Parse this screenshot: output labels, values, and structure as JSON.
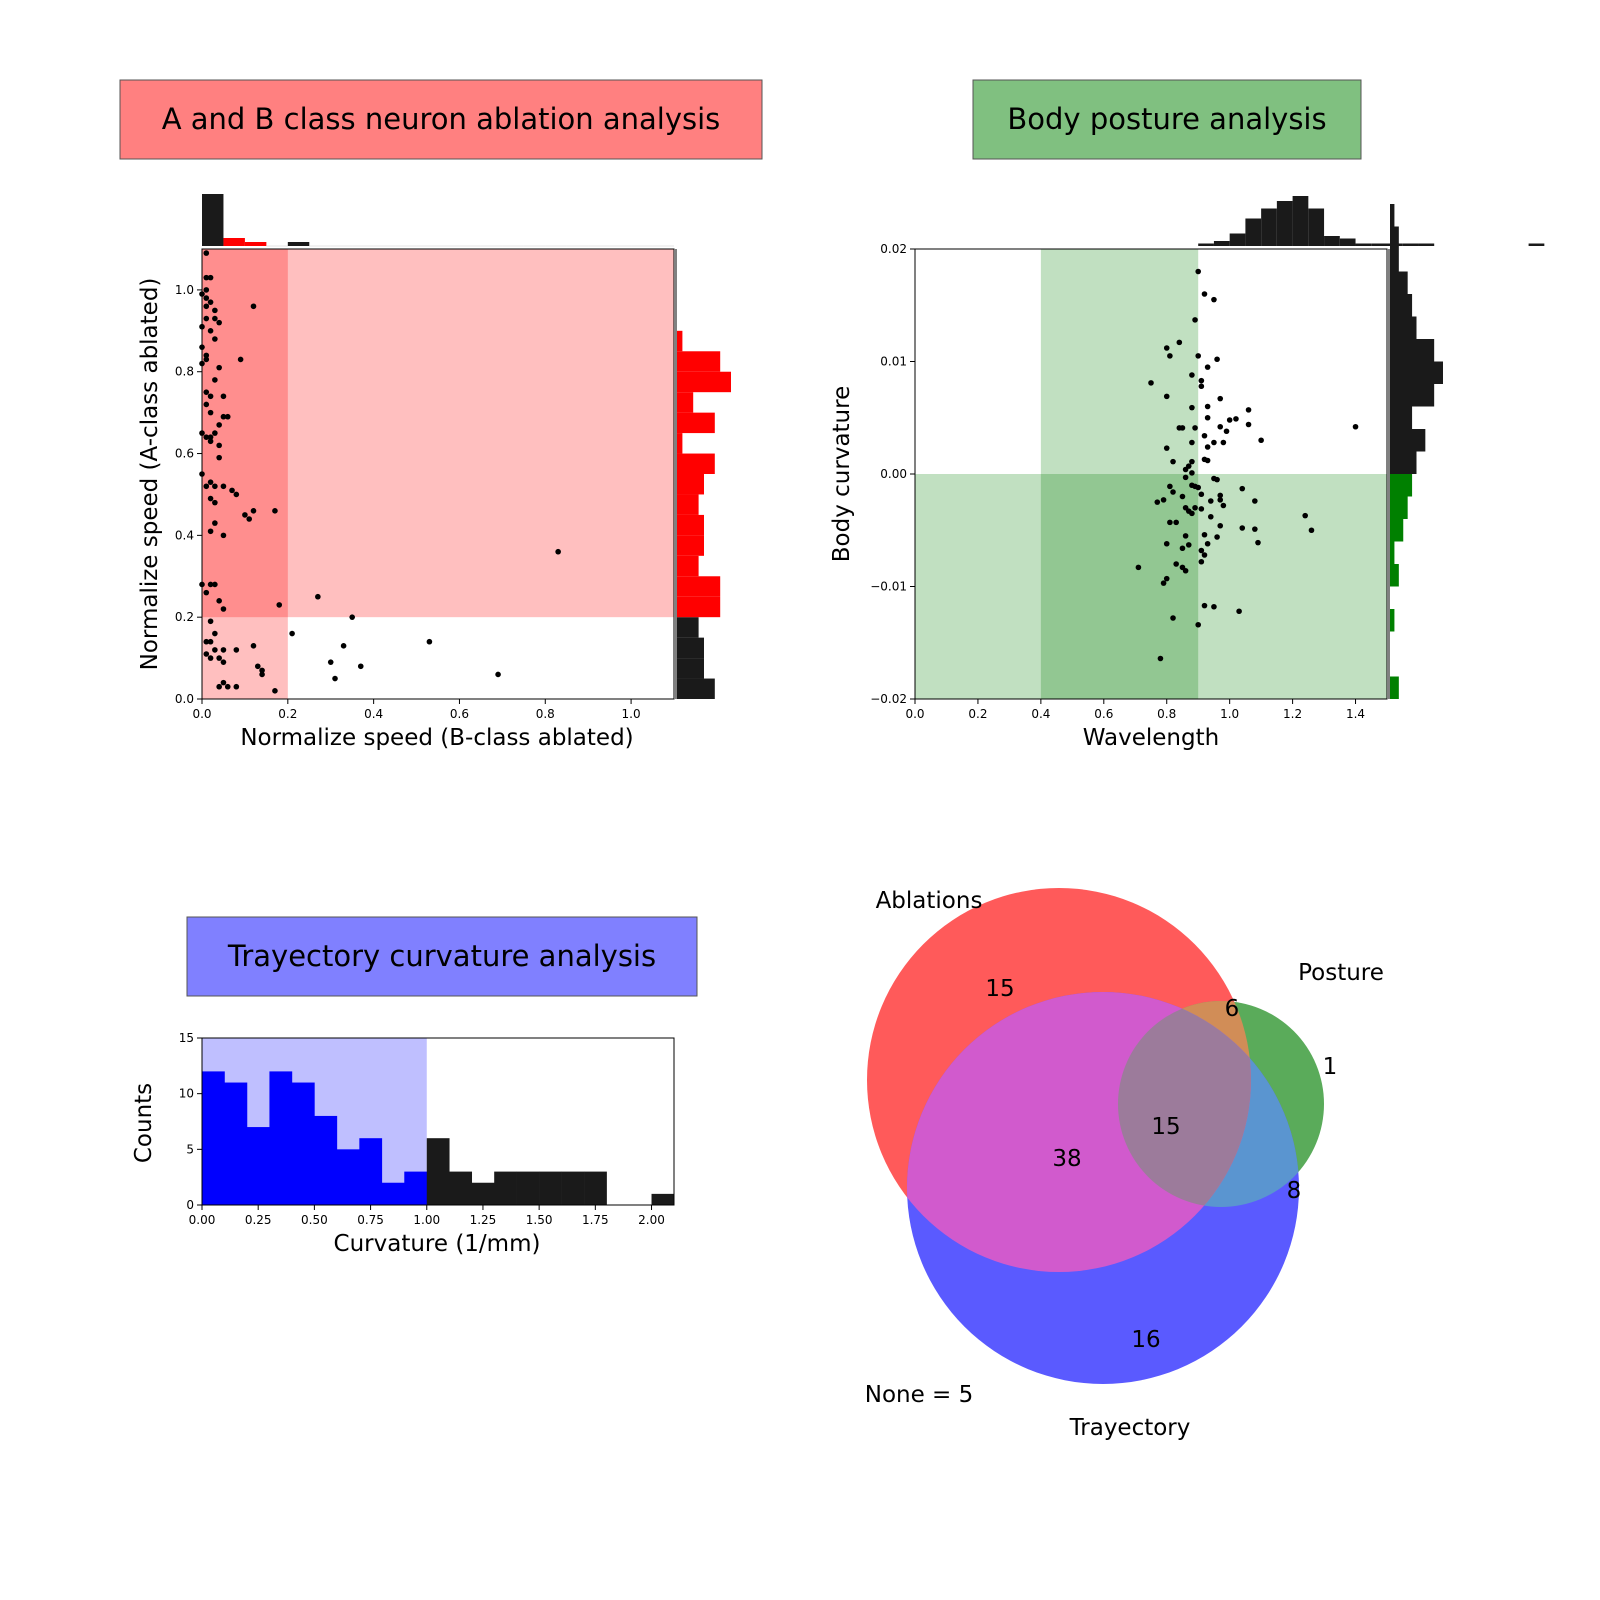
{
  "colors": {
    "red": "#ff0000",
    "red_title_bg": "#ff8080",
    "red_shade_light": "#ffbfbf",
    "red_shade_dark": "#ff8e8e",
    "green": "#008000",
    "green_title_bg": "#80c080",
    "green_shade_light": "#c1e0c1",
    "green_shade_dark": "#92c792",
    "blue": "#0000ff",
    "blue_title_bg": "#8080ff",
    "blue_shade": "#bfbfff",
    "black": "#1a1a1a",
    "venn_red": "#ff5a5a",
    "venn_green": "#5aab5a",
    "venn_blue": "#5a5aff",
    "venn_red_green": "#d18d57",
    "venn_red_blue": "#d15acd",
    "venn_green_blue": "#5a95d0",
    "venn_all": "#9c7b9b"
  },
  "chart_data": [
    {
      "id": "ablation",
      "type": "scatter",
      "title": "A and B class neuron ablation analysis",
      "xlabel": "Normalize speed (B-class ablated)",
      "ylabel": "Normalize speed (A-class ablated)",
      "xlim": [
        0.0,
        1.1
      ],
      "ylim": [
        0.0,
        1.1
      ],
      "xticks": [
        "0.0",
        "0.2",
        "0.4",
        "0.6",
        "0.8",
        "1.0"
      ],
      "yticks": [
        "0.0",
        "0.2",
        "0.4",
        "0.6",
        "0.8",
        "1.0"
      ],
      "thresholds": {
        "x": 0.2,
        "y": 0.2
      },
      "grid": false,
      "points": [
        [
          0.01,
          1.09
        ],
        [
          0.01,
          1.03
        ],
        [
          0.02,
          1.03
        ],
        [
          0.01,
          1.0
        ],
        [
          0.0,
          0.99
        ],
        [
          0.01,
          0.98
        ],
        [
          0.02,
          0.97
        ],
        [
          0.01,
          0.96
        ],
        [
          0.12,
          0.96
        ],
        [
          0.03,
          0.95
        ],
        [
          0.01,
          0.93
        ],
        [
          0.03,
          0.93
        ],
        [
          0.0,
          0.91
        ],
        [
          0.02,
          0.9
        ],
        [
          0.04,
          0.92
        ],
        [
          0.03,
          0.88
        ],
        [
          0.0,
          0.86
        ],
        [
          0.01,
          0.84
        ],
        [
          0.01,
          0.83
        ],
        [
          0.0,
          0.82
        ],
        [
          0.09,
          0.83
        ],
        [
          0.04,
          0.81
        ],
        [
          0.03,
          0.78
        ],
        [
          0.01,
          0.75
        ],
        [
          0.02,
          0.74
        ],
        [
          0.05,
          0.74
        ],
        [
          0.01,
          0.72
        ],
        [
          0.02,
          0.7
        ],
        [
          0.05,
          0.69
        ],
        [
          0.06,
          0.69
        ],
        [
          0.04,
          0.67
        ],
        [
          0.0,
          0.65
        ],
        [
          0.01,
          0.64
        ],
        [
          0.02,
          0.64
        ],
        [
          0.03,
          0.65
        ],
        [
          0.02,
          0.63
        ],
        [
          0.04,
          0.62
        ],
        [
          0.04,
          0.59
        ],
        [
          0.0,
          0.55
        ],
        [
          0.02,
          0.53
        ],
        [
          0.01,
          0.52
        ],
        [
          0.03,
          0.52
        ],
        [
          0.05,
          0.52
        ],
        [
          0.07,
          0.51
        ],
        [
          0.08,
          0.5
        ],
        [
          0.02,
          0.49
        ],
        [
          0.03,
          0.48
        ],
        [
          0.12,
          0.46
        ],
        [
          0.17,
          0.46
        ],
        [
          0.1,
          0.45
        ],
        [
          0.11,
          0.44
        ],
        [
          0.03,
          0.43
        ],
        [
          0.02,
          0.41
        ],
        [
          0.05,
          0.4
        ],
        [
          0.83,
          0.36
        ],
        [
          0.0,
          0.28
        ],
        [
          0.02,
          0.28
        ],
        [
          0.03,
          0.28
        ],
        [
          0.01,
          0.26
        ],
        [
          0.04,
          0.24
        ],
        [
          0.05,
          0.22
        ],
        [
          0.27,
          0.25
        ],
        [
          0.18,
          0.23
        ],
        [
          0.35,
          0.2
        ],
        [
          0.02,
          0.19
        ],
        [
          0.21,
          0.16
        ],
        [
          0.03,
          0.16
        ],
        [
          0.01,
          0.14
        ],
        [
          0.02,
          0.14
        ],
        [
          0.53,
          0.14
        ],
        [
          0.12,
          0.13
        ],
        [
          0.33,
          0.13
        ],
        [
          0.03,
          0.12
        ],
        [
          0.05,
          0.12
        ],
        [
          0.08,
          0.12
        ],
        [
          0.01,
          0.11
        ],
        [
          0.02,
          0.1
        ],
        [
          0.04,
          0.1
        ],
        [
          0.05,
          0.09
        ],
        [
          0.3,
          0.09
        ],
        [
          0.37,
          0.08
        ],
        [
          0.13,
          0.08
        ],
        [
          0.14,
          0.07
        ],
        [
          0.14,
          0.06
        ],
        [
          0.31,
          0.05
        ],
        [
          0.69,
          0.06
        ],
        [
          0.05,
          0.04
        ],
        [
          0.04,
          0.03
        ],
        [
          0.06,
          0.03
        ],
        [
          0.08,
          0.03
        ],
        [
          0.17,
          0.02
        ]
      ],
      "top_histogram": {
        "bin_width": 0.05,
        "counts": [
          13,
          2,
          1,
          0,
          1,
          0,
          0,
          0,
          0,
          0,
          0,
          0,
          0,
          0,
          0,
          0,
          0,
          0,
          0,
          0,
          0,
          0
        ],
        "colored_bins_below": 0.2
      },
      "right_histogram": {
        "bin_width": 0.05,
        "counts": [
          7,
          5,
          5,
          4,
          8,
          8,
          4,
          5,
          5,
          4,
          5,
          7,
          1,
          7,
          3,
          10,
          8,
          1
        ],
        "colored_bins_above": 0.2
      }
    },
    {
      "id": "posture",
      "type": "scatter",
      "title": "Body posture analysis",
      "xlabel": "Wavelength",
      "ylabel": "Body curvature",
      "xlim": [
        0.0,
        1.5
      ],
      "ylim": [
        -0.02,
        0.02
      ],
      "xticks": [
        "0.0",
        "0.2",
        "0.4",
        "0.6",
        "0.8",
        "1.0",
        "1.2",
        "1.4"
      ],
      "yticks": [
        "−0.02",
        "−0.01",
        "0.00",
        "0.01",
        "0.02"
      ],
      "thresholds": {
        "x_low": 0.4,
        "x_high": 0.9,
        "y": 0.0
      },
      "grid": false,
      "points": [
        [
          0.9,
          0.018
        ],
        [
          0.92,
          0.016
        ],
        [
          0.95,
          0.0155
        ],
        [
          0.89,
          0.0137
        ],
        [
          0.84,
          0.0117
        ],
        [
          0.8,
          0.0112
        ],
        [
          0.81,
          0.0105
        ],
        [
          0.9,
          0.0105
        ],
        [
          0.96,
          0.0102
        ],
        [
          0.93,
          0.0095
        ],
        [
          0.88,
          0.0088
        ],
        [
          0.91,
          0.0083
        ],
        [
          0.75,
          0.0081
        ],
        [
          0.91,
          0.0078
        ],
        [
          0.8,
          0.0069
        ],
        [
          0.97,
          0.0067
        ],
        [
          0.88,
          0.0059
        ],
        [
          0.93,
          0.006
        ],
        [
          1.06,
          0.0057
        ],
        [
          0.93,
          0.005
        ],
        [
          1.0,
          0.0048
        ],
        [
          1.02,
          0.0049
        ],
        [
          0.84,
          0.0041
        ],
        [
          0.85,
          0.0041
        ],
        [
          0.89,
          0.0041
        ],
        [
          0.97,
          0.0042
        ],
        [
          1.06,
          0.0044
        ],
        [
          0.92,
          0.0034
        ],
        [
          0.99,
          0.0038
        ],
        [
          1.4,
          0.0042
        ],
        [
          0.88,
          0.0028
        ],
        [
          0.95,
          0.0028
        ],
        [
          0.98,
          0.0028
        ],
        [
          0.93,
          0.0024
        ],
        [
          1.1,
          0.003
        ],
        [
          0.8,
          0.0023
        ],
        [
          0.88,
          0.0011
        ],
        [
          0.92,
          0.0013
        ],
        [
          0.93,
          0.0012
        ],
        [
          0.82,
          0.0011
        ],
        [
          0.87,
          0.0007
        ],
        [
          0.86,
          0.0004
        ],
        [
          0.88,
          0.0001
        ],
        [
          0.86,
          -0.0003
        ],
        [
          0.95,
          -0.0004
        ],
        [
          0.96,
          -0.0005
        ],
        [
          0.88,
          -0.001
        ],
        [
          0.89,
          -0.0011
        ],
        [
          0.9,
          -0.0012
        ],
        [
          0.81,
          -0.0011
        ],
        [
          1.04,
          -0.0013
        ],
        [
          0.82,
          -0.0016
        ],
        [
          0.91,
          -0.0018
        ],
        [
          0.97,
          -0.0019
        ],
        [
          0.85,
          -0.002
        ],
        [
          0.77,
          -0.0025
        ],
        [
          0.79,
          -0.0023
        ],
        [
          0.94,
          -0.0024
        ],
        [
          0.97,
          -0.0023
        ],
        [
          0.98,
          -0.0028
        ],
        [
          1.08,
          -0.0024
        ],
        [
          0.86,
          -0.003
        ],
        [
          0.89,
          -0.003
        ],
        [
          0.87,
          -0.0033
        ],
        [
          0.91,
          -0.0031
        ],
        [
          0.88,
          -0.0035
        ],
        [
          0.94,
          -0.0038
        ],
        [
          1.24,
          -0.0037
        ],
        [
          0.81,
          -0.0043
        ],
        [
          0.83,
          -0.0043
        ],
        [
          0.97,
          -0.0046
        ],
        [
          1.04,
          -0.0048
        ],
        [
          1.08,
          -0.0049
        ],
        [
          1.26,
          -0.005
        ],
        [
          0.86,
          -0.0055
        ],
        [
          0.92,
          -0.0054
        ],
        [
          0.96,
          -0.0056
        ],
        [
          0.8,
          -0.0062
        ],
        [
          0.87,
          -0.0063
        ],
        [
          0.93,
          -0.0062
        ],
        [
          1.09,
          -0.0061
        ],
        [
          0.85,
          -0.0066
        ],
        [
          0.91,
          -0.0068
        ],
        [
          0.92,
          -0.0072
        ],
        [
          0.83,
          -0.008
        ],
        [
          0.91,
          -0.0078
        ],
        [
          0.71,
          -0.0083
        ],
        [
          0.85,
          -0.0083
        ],
        [
          0.86,
          -0.0086
        ],
        [
          0.8,
          -0.0093
        ],
        [
          0.79,
          -0.0097
        ],
        [
          0.92,
          -0.0117
        ],
        [
          0.95,
          -0.0118
        ],
        [
          1.03,
          -0.0122
        ],
        [
          0.82,
          -0.0128
        ],
        [
          0.9,
          -0.0134
        ],
        [
          0.78,
          -0.0164
        ]
      ],
      "top_histogram": {
        "bin_width": 0.05,
        "counts": [
          0,
          0,
          0,
          0,
          0,
          0,
          0,
          0,
          0,
          0,
          0,
          0,
          0,
          0,
          0,
          0,
          0,
          0,
          1,
          2,
          5,
          11,
          15,
          18,
          20,
          15,
          4,
          3,
          1,
          1,
          1,
          1,
          1,
          0,
          0,
          0,
          0,
          0,
          0,
          1
        ],
        "colored_range": [
          0.4,
          0.9
        ]
      },
      "right_histogram": {
        "bin_width": 0.002,
        "counts": [
          2,
          0,
          0,
          1,
          0,
          2,
          1,
          3,
          4,
          5,
          6,
          8,
          5,
          10,
          12,
          10,
          6,
          5,
          4,
          2,
          2,
          1,
          0,
          0,
          0,
          0,
          0,
          0,
          0,
          0
        ],
        "colored_below": 0.0
      }
    },
    {
      "id": "trajectory",
      "type": "bar",
      "title": "Trayectory curvature analysis",
      "xlabel": "Curvature (1/mm)",
      "ylabel": "Counts",
      "xlim": [
        0.0,
        2.1
      ],
      "ylim": [
        0,
        15
      ],
      "xticks": [
        "0.00",
        "0.25",
        "0.50",
        "0.75",
        "1.00",
        "1.25",
        "1.50",
        "1.75",
        "2.00"
      ],
      "yticks": [
        "0",
        "5",
        "10",
        "15"
      ],
      "threshold": 1.0,
      "grid": false,
      "bin_width": 0.1,
      "counts": [
        12,
        11,
        7,
        12,
        11,
        8,
        5,
        6,
        2,
        3,
        6,
        3,
        2,
        3,
        3,
        3,
        3,
        3,
        0,
        0,
        1
      ]
    }
  ],
  "venn": {
    "labels": {
      "ablations": "Ablations",
      "posture": "Posture",
      "trajectory": "Trayectory"
    },
    "none_label": "None = 5",
    "regions": {
      "ablations_only": "15",
      "ablations_posture": "6",
      "posture_only": "1",
      "ablations_trajectory": "38",
      "all_three": "15",
      "posture_trajectory": "8",
      "trajectory_only": "16"
    }
  }
}
